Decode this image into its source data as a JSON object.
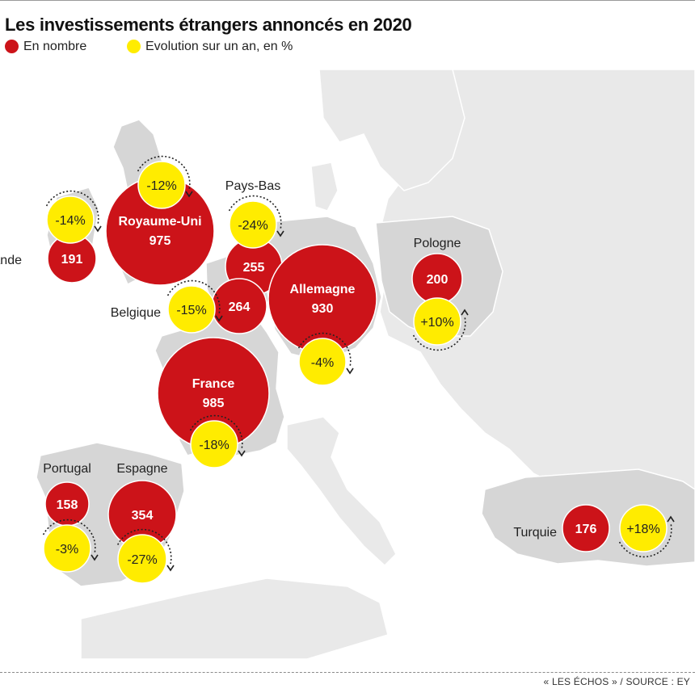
{
  "title": "Les investissements étrangers annoncés en 2020",
  "legend": [
    {
      "label": "En nombre",
      "color": "#cc1319"
    },
    {
      "label": "Evolution sur un an, en %",
      "color": "#ffec00"
    }
  ],
  "countries": [
    {
      "name": "Royaume-Uni",
      "count": "975",
      "evolution": "-12%"
    },
    {
      "name": "Irlande",
      "count": "191",
      "evolution": "-14%"
    },
    {
      "name": "Pays-Bas",
      "count": "255",
      "evolution": "-24%"
    },
    {
      "name": "Belgique",
      "count": "264",
      "evolution": "-15%"
    },
    {
      "name": "Allemagne",
      "count": "930",
      "evolution": "-4%"
    },
    {
      "name": "Pologne",
      "count": "200",
      "evolution": "+10%"
    },
    {
      "name": "France",
      "count": "985",
      "evolution": "-18%"
    },
    {
      "name": "Portugal",
      "count": "158",
      "evolution": "-3%"
    },
    {
      "name": "Espagne",
      "count": "354",
      "evolution": "-27%"
    },
    {
      "name": "Turquie",
      "count": "176",
      "evolution": "+18%"
    }
  ],
  "colors": {
    "bubble_count": "#cc1319",
    "bubble_evolution": "#ffec00",
    "land_highlight": "#d6d6d6",
    "land_other": "#e9e9e9",
    "sea": "#ffffff",
    "border": "#ffffff"
  },
  "source": "« LES ÉCHOS » / SOURCE : EY"
}
